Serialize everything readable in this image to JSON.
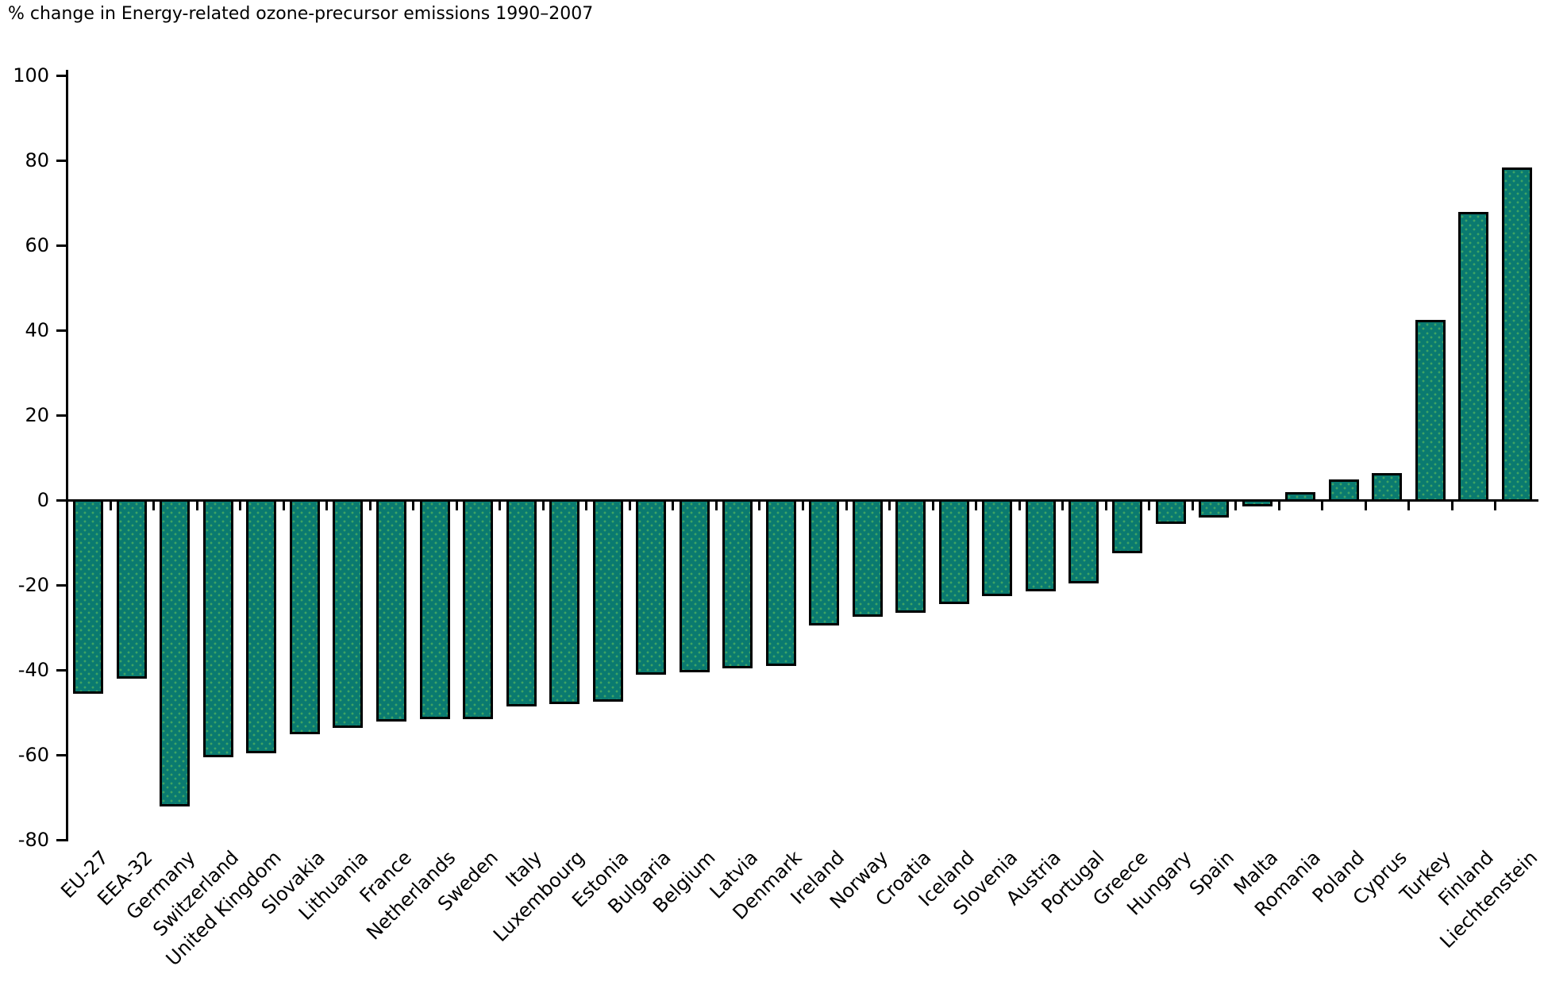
{
  "chart_data": {
    "type": "bar",
    "title": "% change in Energy-related ozone-precursor emissions 1990–2007",
    "xlabel": "",
    "ylabel": "",
    "ylim": [
      -80,
      100
    ],
    "ytick_step": 20,
    "yticks": [
      100,
      80,
      60,
      40,
      20,
      0,
      -20,
      -40,
      -60,
      -80
    ],
    "ytick_labels": [
      "100",
      "80",
      "60",
      "40",
      "20",
      "0",
      "-20",
      "-40",
      "-60",
      "-80"
    ],
    "grid": false,
    "legend": "none",
    "x_label_rotation_deg": 45,
    "categories": [
      "EU-27",
      "EEA-32",
      "Germany",
      "Switzerland",
      "United Kingdom",
      "Slovakia",
      "Lithuania",
      "France",
      "Netherlands",
      "Sweden",
      "Italy",
      "Luxembourg",
      "Estonia",
      "Bulgaria",
      "Belgium",
      "Latvia",
      "Denmark",
      "Ireland",
      "Norway",
      "Croatia",
      "Iceland",
      "Slovenia",
      "Austria",
      "Portugal",
      "Greece",
      "Hungary",
      "Spain",
      "Malta",
      "Romania",
      "Poland",
      "Cyprus",
      "Turkey",
      "Finland",
      "Liechtenstein"
    ],
    "values": [
      -45,
      -41.5,
      -71.5,
      -60,
      -59,
      -54.5,
      -53,
      -51.5,
      -51,
      -51,
      -48,
      -47.5,
      -47,
      -40.5,
      -40,
      -39,
      -38.5,
      -29,
      -27,
      -26,
      -24,
      -22,
      -21,
      -19,
      -12,
      -5,
      -3.5,
      -1,
      1.5,
      4.5,
      6,
      42,
      67.5,
      78
    ],
    "colors": {
      "bar_fill": "#0a7a70",
      "bar_speckle": "#3fa463",
      "bar_border": "#000000",
      "axis": "#000000",
      "text": "#000000",
      "background": "#ffffff"
    }
  }
}
